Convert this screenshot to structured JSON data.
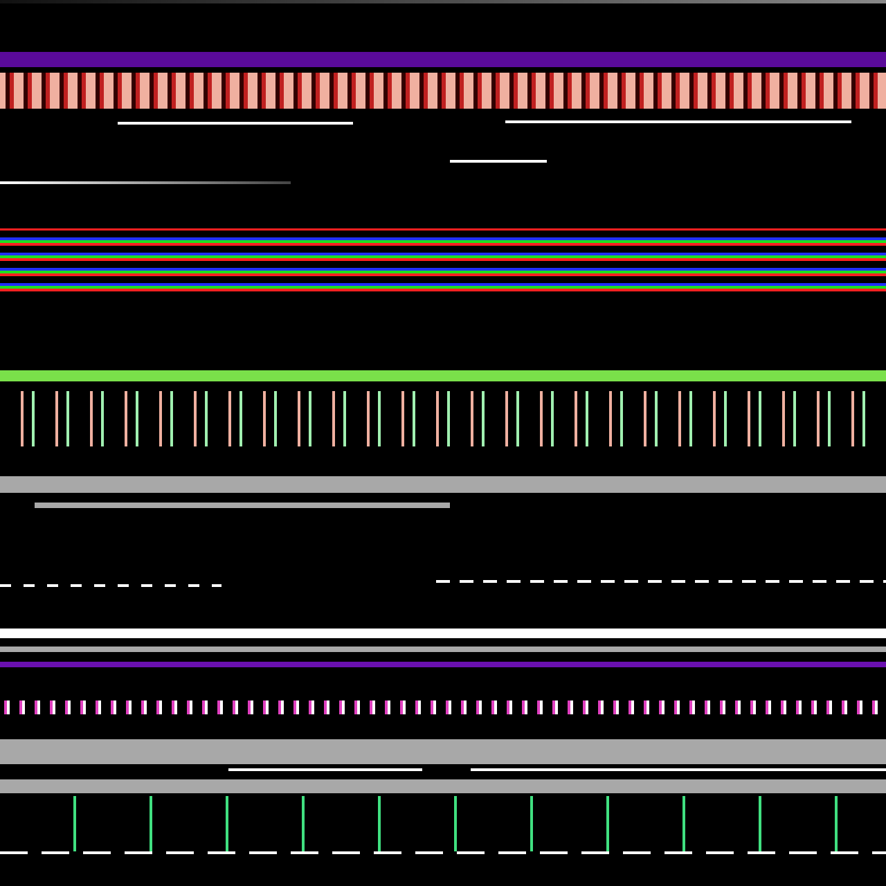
{
  "colors": {
    "background": "#000000",
    "purple_band": "#5a0a9a",
    "salmon_band": "#f0b0a0",
    "green_band": "#7ae04a",
    "gray_bar": "#a8a8a8",
    "white_line": "#ffffff",
    "rgb_stripes": [
      "#ff2020",
      "#20e020",
      "#2030ff"
    ]
  }
}
